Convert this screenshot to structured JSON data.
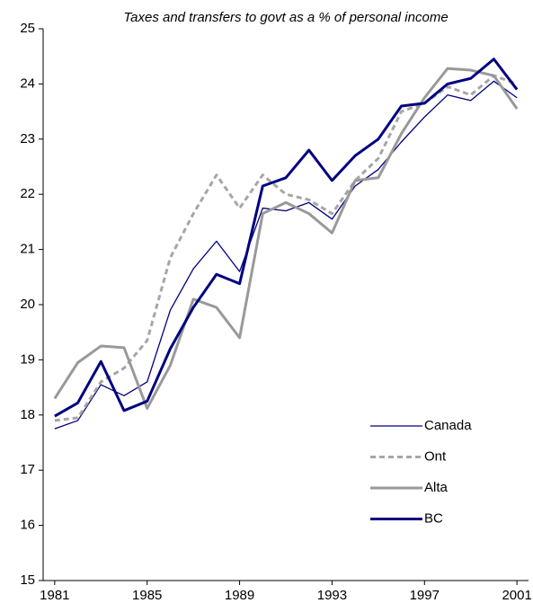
{
  "chart_data": {
    "type": "line",
    "title": "Taxes and transfers to govt as a % of personal income",
    "x": [
      1981,
      1982,
      1983,
      1984,
      1985,
      1986,
      1987,
      1988,
      1989,
      1990,
      1991,
      1992,
      1993,
      1994,
      1995,
      1996,
      1997,
      1998,
      1999,
      2000,
      2001
    ],
    "series": [
      {
        "name": "Canada",
        "color": "#000080",
        "width": 1.3,
        "dash": "none",
        "values": [
          17.75,
          17.9,
          18.55,
          18.35,
          18.6,
          19.9,
          20.65,
          21.15,
          20.6,
          21.75,
          21.7,
          21.85,
          21.55,
          22.15,
          22.45,
          22.95,
          23.4,
          23.8,
          23.7,
          24.05,
          23.75
        ]
      },
      {
        "name": "Ont",
        "color": "#a6a6a6",
        "width": 3,
        "dash": "6 4",
        "values": [
          17.9,
          17.95,
          18.6,
          18.85,
          19.35,
          20.85,
          21.65,
          22.35,
          21.75,
          22.35,
          22.0,
          21.9,
          21.65,
          22.25,
          22.65,
          23.5,
          23.65,
          23.95,
          23.8,
          24.15,
          24.0
        ]
      },
      {
        "name": "Alta",
        "color": "#999999",
        "width": 3,
        "dash": "none",
        "values": [
          18.3,
          18.95,
          19.25,
          19.22,
          18.12,
          18.9,
          20.1,
          19.95,
          19.4,
          21.65,
          21.85,
          21.65,
          21.3,
          22.25,
          22.3,
          23.1,
          23.75,
          24.28,
          24.25,
          24.15,
          23.55
        ]
      },
      {
        "name": "BC",
        "color": "#000080",
        "width": 3,
        "dash": "none",
        "values": [
          17.98,
          18.22,
          18.97,
          18.08,
          18.25,
          19.2,
          19.95,
          20.55,
          20.38,
          22.15,
          22.3,
          22.8,
          22.25,
          22.7,
          23.0,
          23.6,
          23.65,
          24.0,
          24.1,
          24.45,
          23.9
        ]
      }
    ],
    "xlim": [
      1980.5,
      2001.5
    ],
    "xticks": [
      1981,
      1985,
      1989,
      1993,
      1997,
      2001
    ],
    "ylim": [
      15,
      25
    ],
    "yticks": [
      15,
      16,
      17,
      18,
      19,
      20,
      21,
      22,
      23,
      24,
      25
    ],
    "legend": "lower right"
  }
}
